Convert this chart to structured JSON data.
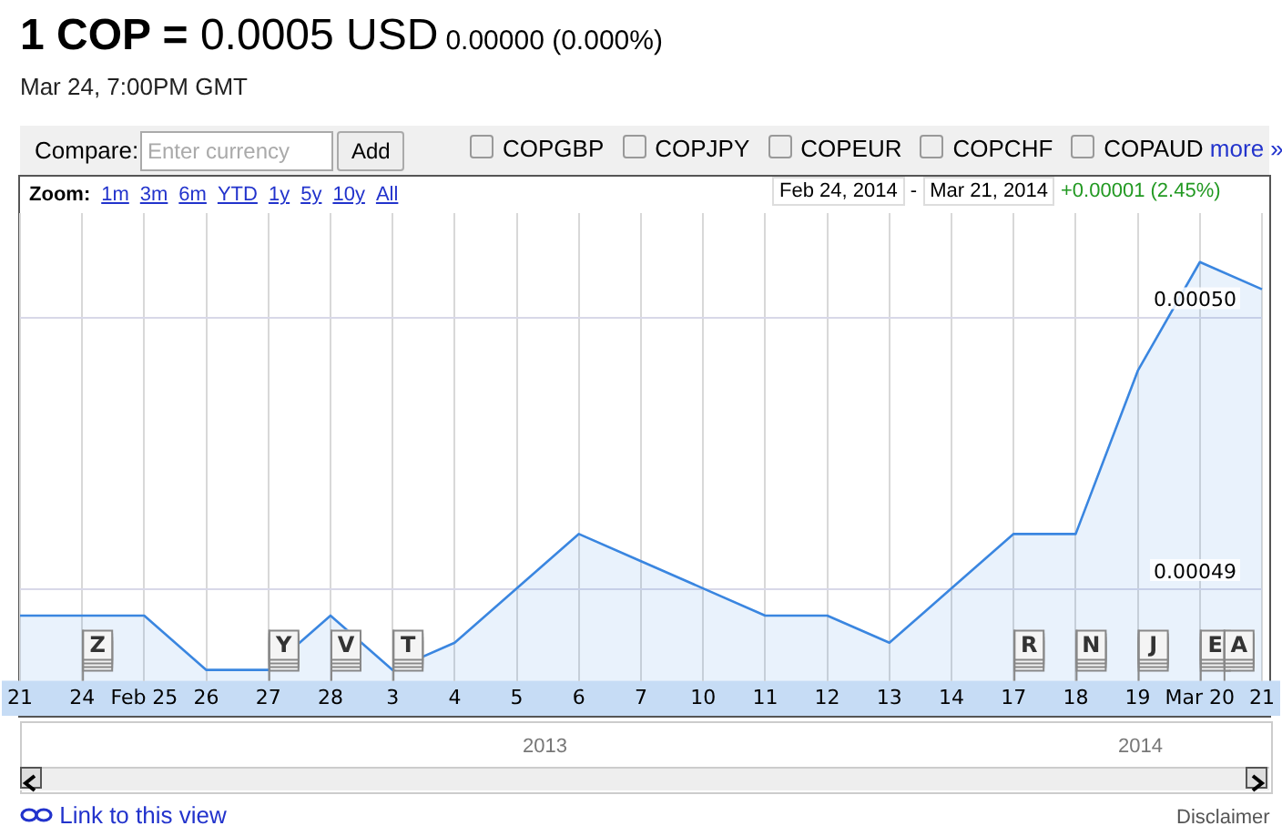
{
  "chart_data": {
    "type": "area",
    "title": "1 COP = 0.0005 USD",
    "subtitle": "0.00000 (0.000%)",
    "categories": [
      "21",
      "24",
      "Feb 25",
      "26",
      "27",
      "28",
      "3",
      "4",
      "5",
      "6",
      "7",
      "10",
      "11",
      "12",
      "13",
      "14",
      "17",
      "18",
      "19",
      "Mar 20",
      "21"
    ],
    "series": [
      {
        "color": "#3a86e0",
        "values": [
          0.000489,
          0.000489,
          0.000489,
          0.000487,
          0.000487,
          0.000489,
          0.000487,
          0.000488,
          0.00049,
          0.000492,
          0.000491,
          0.00049,
          0.000489,
          0.000489,
          0.000488,
          0.00049,
          0.000492,
          0.000492,
          0.000498,
          0.000502,
          0.000501
        ]
      }
    ],
    "ylim": [
      0.0004866,
      0.0005038
    ],
    "yticks": [
      {
        "value": 0.00049,
        "label": "0.00049"
      },
      {
        "value": 0.0005,
        "label": "0.00050"
      }
    ],
    "grid": true,
    "legend": false,
    "marker": "none",
    "annotations": [
      "Mar 24, 7:00PM GMT",
      "Compare:",
      "Enter currency",
      "Add",
      "COPGBP",
      "COPJPY",
      "COPEUR",
      "COPCHF",
      "COPAUD",
      "more »",
      "Zoom:",
      "1m",
      "3m",
      "6m",
      "YTD",
      "1y",
      "5y",
      "10y",
      "All",
      "Feb 24, 2014",
      "-",
      "Mar 21, 2014",
      "+0.00001 (2.45%)",
      "2013",
      "2014",
      "Link to this view",
      "Disclaimer",
      {
        "text": "Z",
        "x": "24",
        "y": 0.0004866
      },
      {
        "text": "Y",
        "x": "27",
        "y": 0.0004866
      },
      {
        "text": "V",
        "x": "28",
        "y": 0.0004866
      },
      {
        "text": "T",
        "x": "3",
        "y": 0.0004866
      },
      {
        "text": "R",
        "x": "17",
        "y": 0.0004866
      },
      {
        "text": "N",
        "x": "18",
        "y": 0.0004866
      },
      {
        "text": "J",
        "x": "19",
        "y": 0.0004866
      },
      {
        "text": "E",
        "x": "Mar 20",
        "y": 0.0004866
      },
      {
        "text": "A",
        "x": "Mar 20",
        "y": 0.0004866
      }
    ]
  }
}
